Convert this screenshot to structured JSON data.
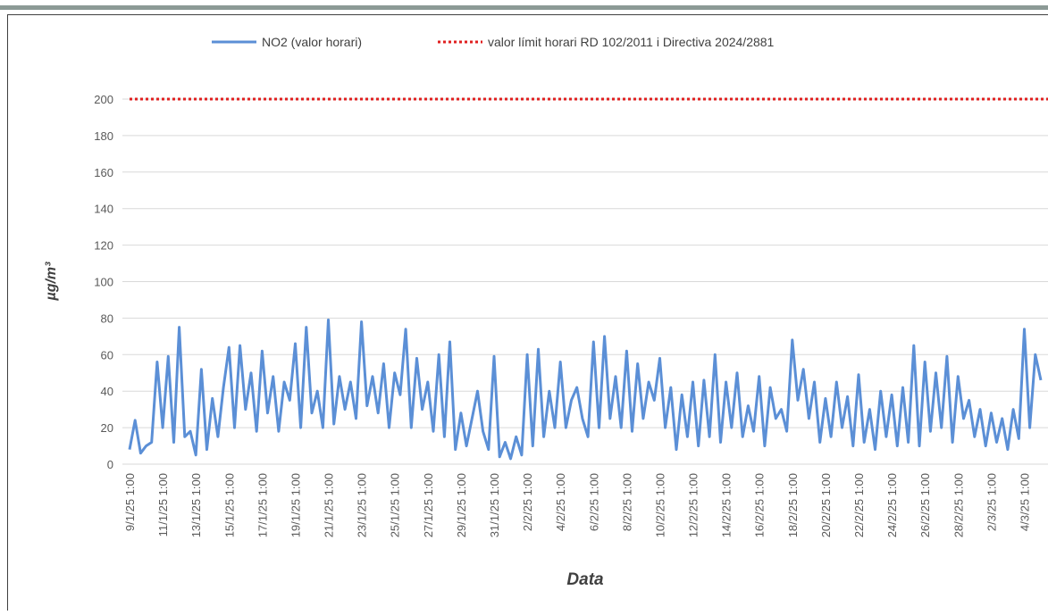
{
  "chart_data": {
    "type": "line",
    "y_label": "µg/m³",
    "x_label": "Data",
    "categories": [
      "9/1/25 1:00",
      null,
      null,
      null,
      null,
      null,
      "11/1/25 1:00",
      null,
      null,
      null,
      null,
      null,
      "13/1/25 1:00",
      null,
      null,
      null,
      null,
      null,
      "15/1/25 1:00",
      null,
      null,
      null,
      null,
      null,
      "17/1/25 1:00",
      null,
      null,
      null,
      null,
      null,
      "19/1/25 1:00",
      null,
      null,
      null,
      null,
      null,
      "21/1/25 1:00",
      null,
      null,
      null,
      null,
      null,
      "23/1/25 1:00",
      null,
      null,
      null,
      null,
      null,
      "25/1/25 1:00",
      null,
      null,
      null,
      null,
      null,
      "27/1/25 1:00",
      null,
      null,
      null,
      null,
      null,
      "29/1/25 1:00",
      null,
      null,
      null,
      null,
      null,
      "31/1/25 1:00",
      null,
      null,
      null,
      null,
      null,
      "2/2/25 1:00",
      null,
      null,
      null,
      null,
      null,
      "4/2/25 1:00",
      null,
      null,
      null,
      null,
      null,
      "6/2/25 1:00",
      null,
      null,
      null,
      null,
      null,
      "8/2/25 1:00",
      null,
      null,
      null,
      null,
      null,
      "10/2/25 1:00",
      null,
      null,
      null,
      null,
      null,
      "12/2/25 1:00",
      null,
      null,
      null,
      null,
      null,
      "14/2/25 1:00",
      null,
      null,
      null,
      null,
      null,
      "16/2/25 1:00",
      null,
      null,
      null,
      null,
      null,
      "18/2/25 1:00",
      null,
      null,
      null,
      null,
      null,
      "20/2/25 1:00",
      null,
      null,
      null,
      null,
      null,
      "22/2/25 1:00",
      null,
      null,
      null,
      null,
      null,
      "24/2/25 1:00",
      null,
      null,
      null,
      null,
      null,
      "26/2/25 1:00",
      null,
      null,
      null,
      null,
      null,
      "28/2/25 1:00",
      null,
      null,
      null,
      null,
      null,
      "2/3/25 1:00",
      null,
      null,
      null,
      null,
      null,
      "4/3/25 1:00",
      null,
      null,
      null
    ],
    "series": [
      {
        "name": "NO2 (valor horari)",
        "color": "#5b8fd6",
        "values": [
          8,
          24,
          6,
          10,
          12,
          56,
          20,
          59,
          12,
          75,
          15,
          18,
          5,
          52,
          8,
          36,
          15,
          42,
          64,
          20,
          65,
          30,
          50,
          18,
          62,
          28,
          48,
          18,
          45,
          35,
          66,
          20,
          75,
          28,
          40,
          20,
          79,
          22,
          48,
          30,
          45,
          25,
          78,
          32,
          48,
          28,
          55,
          20,
          50,
          38,
          74,
          20,
          58,
          30,
          45,
          18,
          60,
          15,
          67,
          8,
          28,
          10,
          25,
          40,
          18,
          8,
          59,
          4,
          12,
          3,
          15,
          5,
          60,
          10,
          63,
          15,
          40,
          20,
          56,
          20,
          35,
          42,
          25,
          15,
          67,
          20,
          70,
          25,
          48,
          20,
          62,
          18,
          55,
          25,
          45,
          35,
          58,
          20,
          42,
          8,
          38,
          15,
          45,
          10,
          46,
          15,
          60,
          12,
          45,
          20,
          50,
          15,
          32,
          18,
          48,
          10,
          42,
          25,
          30,
          18,
          68,
          35,
          52,
          25,
          45,
          12,
          36,
          15,
          45,
          20,
          37,
          10,
          49,
          12,
          30,
          8,
          40,
          15,
          38,
          10,
          42,
          12,
          65,
          10,
          56,
          18,
          50,
          20,
          59,
          12,
          48,
          25,
          35,
          15,
          30,
          10,
          28,
          12,
          25,
          8,
          30,
          14,
          74,
          20,
          60,
          46
        ]
      }
    ],
    "limit_line": {
      "name": "valor límit horari RD 102/2011 i Directiva 2024/2881",
      "value": 200,
      "color": "#e02020"
    },
    "ylim": [
      0,
      200
    ],
    "yticks": [
      0,
      20,
      40,
      60,
      80,
      100,
      120,
      140,
      160,
      180,
      200
    ],
    "grid": true
  }
}
